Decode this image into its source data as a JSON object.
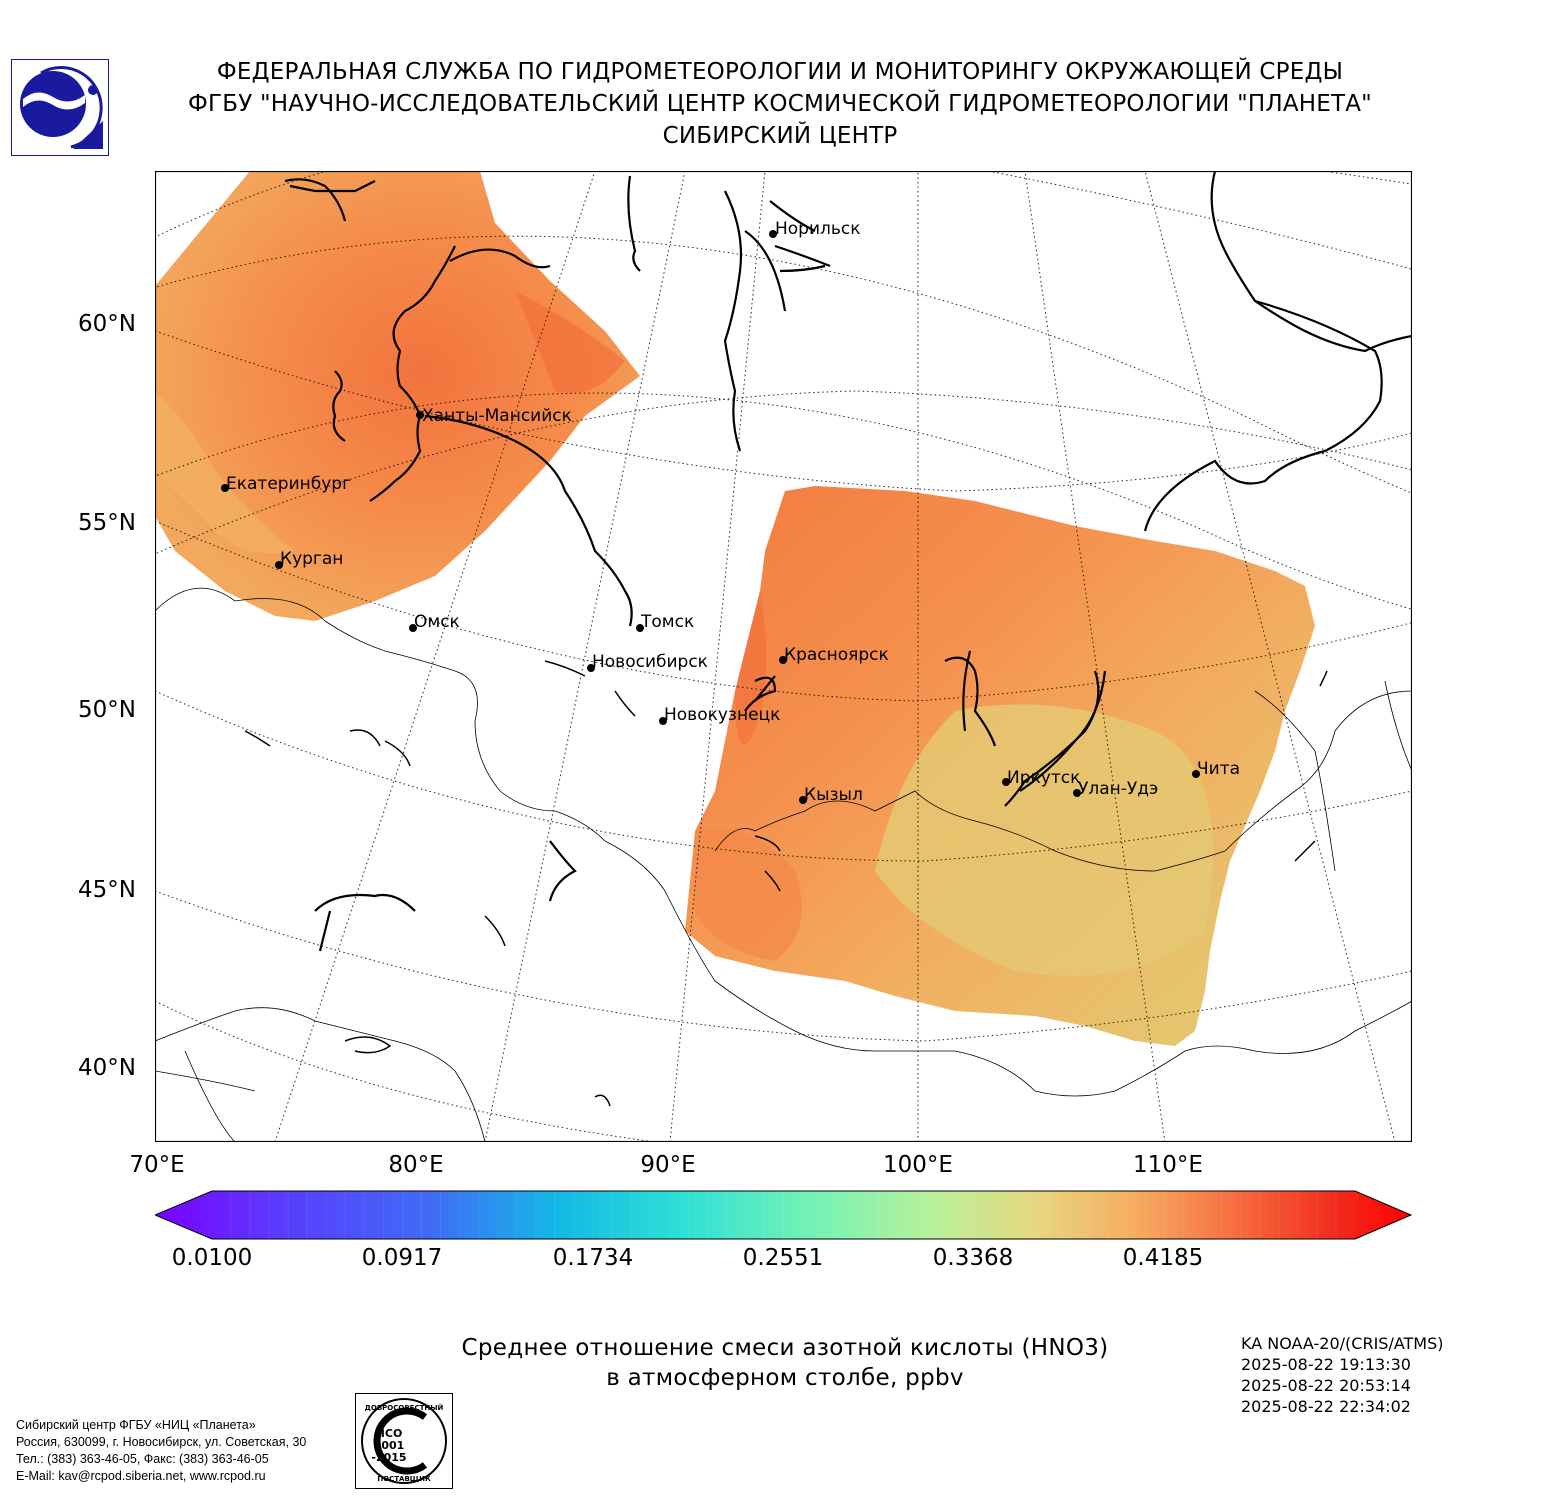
{
  "header": {
    "line1": "ФЕДЕРАЛЬНАЯ СЛУЖБА ПО ГИДРОМЕТЕОРОЛОГИИ И МОНИТОРИНГУ ОКРУЖАЮЩЕЙ СРЕДЫ",
    "line2": "ФГБУ \"НАУЧНО-ИССЛЕДОВАТЕЛЬСКИЙ ЦЕНТР КОСМИЧЕСКОЙ ГИДРОМЕТЕОРОЛОГИИ \"ПЛАНЕТА\"",
    "line3": "СИБИРСКИЙ ЦЕНТР"
  },
  "map": {
    "lat_labels": [
      "60°N",
      "55°N",
      "50°N",
      "45°N",
      "40°N"
    ],
    "lon_labels": [
      "70°E",
      "80°E",
      "90°E",
      "100°E",
      "110°E"
    ],
    "cities": [
      {
        "name": "Норильск"
      },
      {
        "name": "Ханты-Мансийск"
      },
      {
        "name": "Екатеринбург"
      },
      {
        "name": "Курган"
      },
      {
        "name": "Омск"
      },
      {
        "name": "Томск"
      },
      {
        "name": "Новосибирск"
      },
      {
        "name": "Красноярск"
      },
      {
        "name": "Новокузнецк"
      },
      {
        "name": "Кызыл"
      },
      {
        "name": "Иркутск"
      },
      {
        "name": "Улан-Удэ"
      },
      {
        "name": "Чита"
      }
    ]
  },
  "colorbar": {
    "min": 0.01,
    "max": 0.5,
    "tick_labels": [
      "0.0100",
      "0.0917",
      "0.1734",
      "0.2551",
      "0.3368",
      "0.4185"
    ],
    "extend": "both"
  },
  "caption": {
    "line1": "Среднее отношение смеси азотной кислоты (HNO3)",
    "line2": "в атмосферном столбе, ppbv"
  },
  "satellite": {
    "name": "KA NOAA-20/(CRIS/ATMS)",
    "times": [
      "2025-08-22 19:13:30",
      "2025-08-22 20:53:14",
      "2025-08-22 22:34:02"
    ]
  },
  "footer": {
    "line1": "Сибирский центр ФГБУ «НИЦ «Планета»",
    "line2": "Россия, 630099, г. Новосибирск, ул. Советская, 30",
    "line3": "Тел.: (383) 363-46-05, Факс: (383) 363-46-05",
    "line4": "E-Mail: kav@rcpod.siberia.net, www.rcpod.ru"
  },
  "iso_badge": {
    "top_text": "ДОБРОСОВЕСТНЫЙ",
    "line1": "ИСО",
    "line2": "9001",
    "line3": "-2015",
    "bottom_text": "ПОСТАВЩИК"
  },
  "colors": {
    "data_orange": "#f59a52",
    "data_dark": "#f2763f",
    "data_yellow": "#e8c46c",
    "frame": "#000000"
  }
}
